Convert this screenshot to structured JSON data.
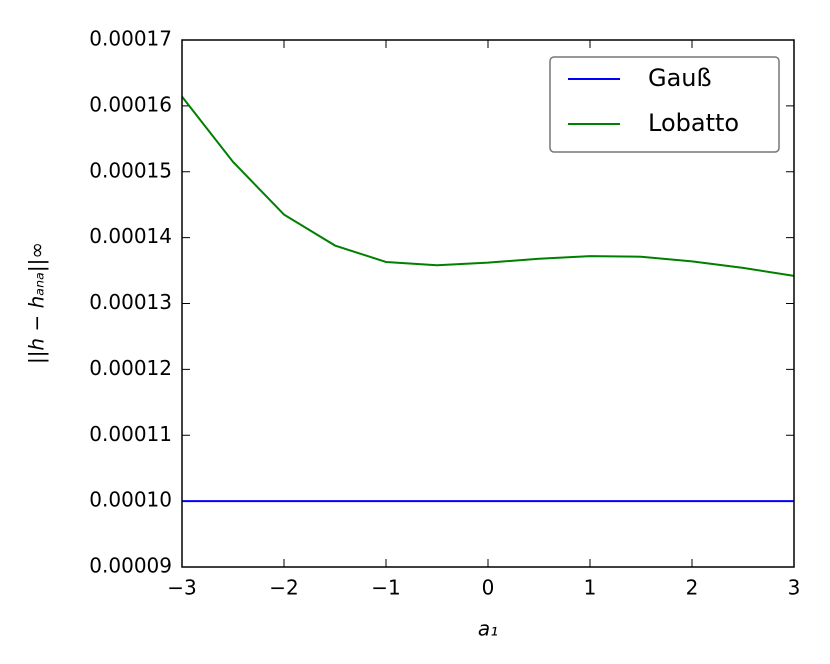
{
  "chart_data": {
    "type": "line",
    "x_label": "a₁",
    "y_label": "||h − hₐₙₐ||∞",
    "x": [
      -3,
      -2.5,
      -2,
      -1.5,
      -1,
      -0.5,
      0,
      0.5,
      1,
      1.5,
      2,
      2.5,
      3
    ],
    "series": [
      {
        "name": "Gauß",
        "color": "#0000ff",
        "values": [
          0.0001,
          0.0001,
          0.0001,
          0.0001,
          0.0001,
          0.0001,
          0.0001,
          0.0001,
          0.0001,
          0.0001,
          0.0001,
          0.0001,
          0.0001
        ]
      },
      {
        "name": "Lobatto",
        "color": "#008000",
        "values": [
          0.0001614,
          0.0001515,
          0.0001435,
          0.0001388,
          0.0001363,
          0.0001358,
          0.0001362,
          0.0001368,
          0.0001372,
          0.0001371,
          0.0001364,
          0.0001354,
          0.0001342
        ]
      }
    ],
    "xlim": [
      -3,
      3
    ],
    "xticks": [
      {
        "value": -3,
        "label": "−3"
      },
      {
        "value": -2,
        "label": "−2"
      },
      {
        "value": -1,
        "label": "−1"
      },
      0,
      1,
      2,
      3
    ],
    "ylim": [
      9e-05,
      0.00017
    ],
    "yticks": [
      9e-05,
      {
        "value": 0.0001,
        "label": "0.00010"
      },
      0.00011,
      0.00012,
      0.00013,
      0.00014,
      0.00015,
      0.00016,
      0.00017
    ],
    "legend": "upper right"
  }
}
